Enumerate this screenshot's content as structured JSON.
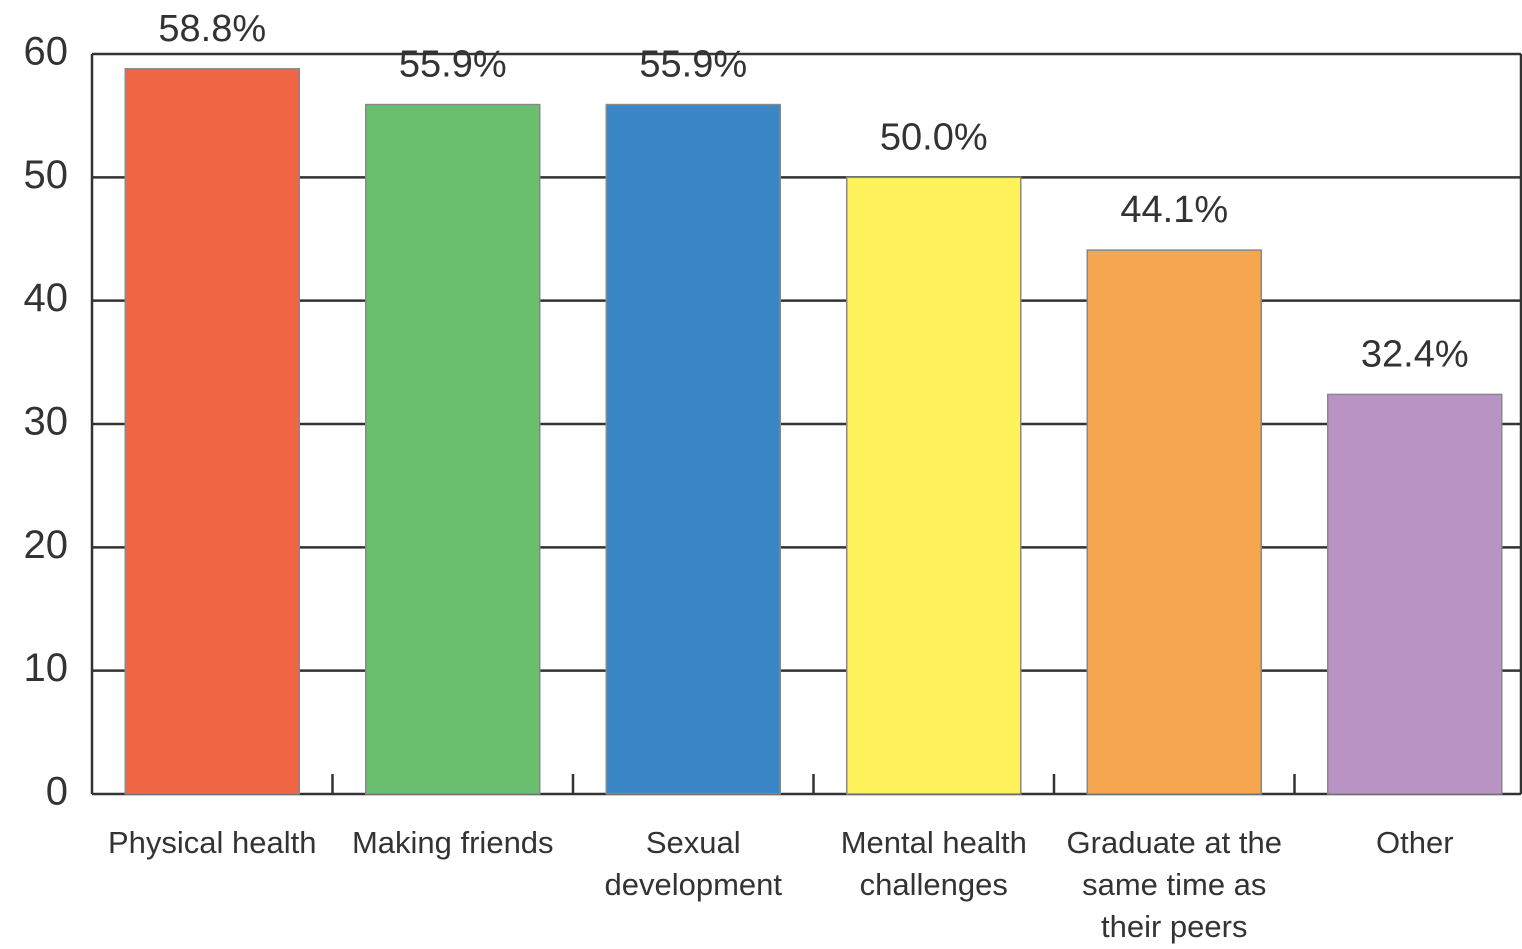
{
  "chart_data": {
    "type": "bar",
    "categories": [
      "Physical health",
      "Making friends",
      "Sexual development",
      "Mental health challenges",
      "Graduate at the same time as their peers",
      "Other"
    ],
    "values": [
      58.8,
      55.9,
      55.9,
      50.0,
      44.1,
      32.4
    ],
    "value_labels": [
      "58.8%",
      "55.9%",
      "55.9%",
      "50.0%",
      "44.1%",
      "32.4%"
    ],
    "colors": [
      "#ef6645",
      "#6abf6e",
      "#3a86c6",
      "#fff25c",
      "#f7a650",
      "#b993c3"
    ],
    "ylim": [
      0,
      60
    ],
    "yticks": [
      0,
      10,
      20,
      30,
      40,
      50,
      60
    ],
    "grid": true
  }
}
